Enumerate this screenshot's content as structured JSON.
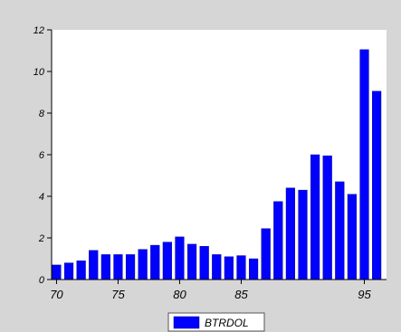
{
  "chart_data": {
    "type": "bar",
    "x": [
      1970,
      1971,
      1972,
      1973,
      1974,
      1975,
      1976,
      1977,
      1978,
      1979,
      1980,
      1981,
      1982,
      1983,
      1984,
      1985,
      1986,
      1987,
      1988,
      1989,
      1990,
      1991,
      1992,
      1993,
      1994,
      1995,
      1996
    ],
    "series": [
      {
        "name": "BTRDOL",
        "values": [
          0.7,
          0.8,
          0.9,
          1.4,
          1.2,
          1.2,
          1.2,
          1.45,
          1.65,
          1.8,
          2.05,
          1.7,
          1.6,
          1.2,
          1.1,
          1.15,
          1.0,
          2.45,
          3.75,
          4.4,
          4.3,
          6.0,
          5.95,
          4.7,
          4.1,
          11.05,
          9.05
        ],
        "color": "#0000ff"
      }
    ],
    "xlim": [
      1969.6,
      1996.8
    ],
    "ylim": [
      0,
      12
    ],
    "yticks": [
      "0",
      "2",
      "4",
      "6",
      "8",
      "10",
      "12"
    ],
    "xticks": [
      "70",
      "75",
      "80",
      "85",
      "95"
    ],
    "xtick_years": [
      1970,
      1975,
      1980,
      1985,
      1995
    ],
    "grid": false,
    "legend": "bottom-center",
    "title": "",
    "xlabel": "",
    "ylabel": ""
  },
  "colors": {
    "background": "#d6d6d6",
    "plot_background": "#ffffff",
    "bar": "#0000ff",
    "bar_edge": "#000080"
  }
}
